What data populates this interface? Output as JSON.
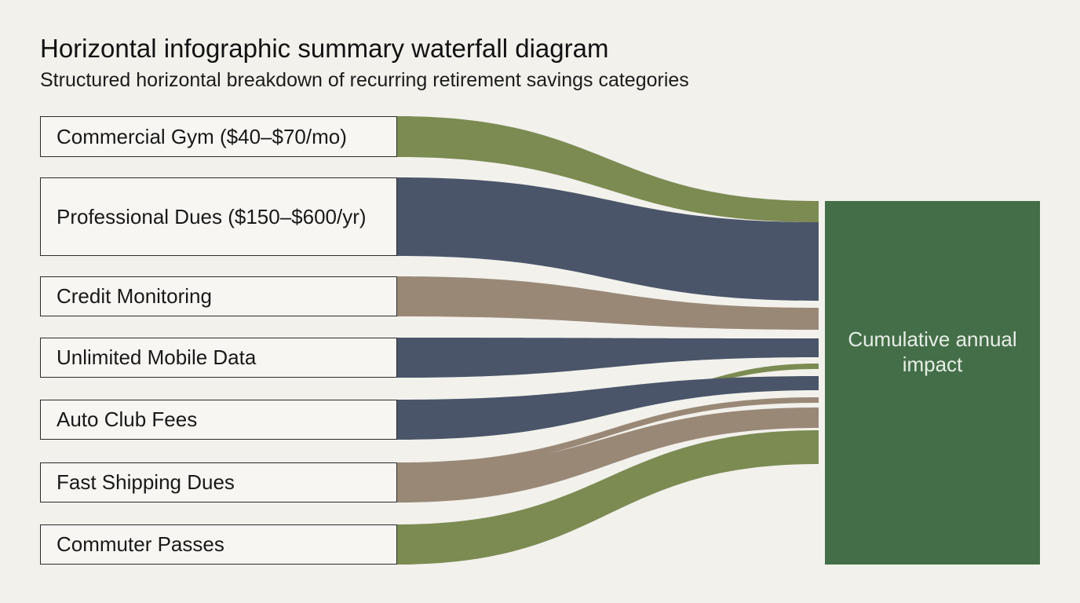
{
  "header": {
    "title": "Horizontal infographic summary waterfall diagram",
    "subtitle": "Structured horizontal breakdown of recurring retirement savings categories"
  },
  "colors": {
    "background": "#f2f1ec",
    "green": "#7b8b52",
    "navy": "#4b5569",
    "taupe": "#9a8877",
    "total_fill": "#446e48"
  },
  "categories": [
    {
      "label": "Commercial Gym ($40–$70/mo)",
      "color": "green"
    },
    {
      "label": "Professional Dues ($150–$600/yr)",
      "color": "navy"
    },
    {
      "label": "Credit Monitoring",
      "color": "taupe"
    },
    {
      "label": "Unlimited Mobile Data",
      "color": "navy"
    },
    {
      "label": "Auto Club Fees",
      "color": "navy"
    },
    {
      "label": "Fast Shipping Dues",
      "color": "taupe"
    },
    {
      "label": "Commuter Passes",
      "color": "green"
    }
  ],
  "total": {
    "label": "Cumulative annual impact"
  }
}
